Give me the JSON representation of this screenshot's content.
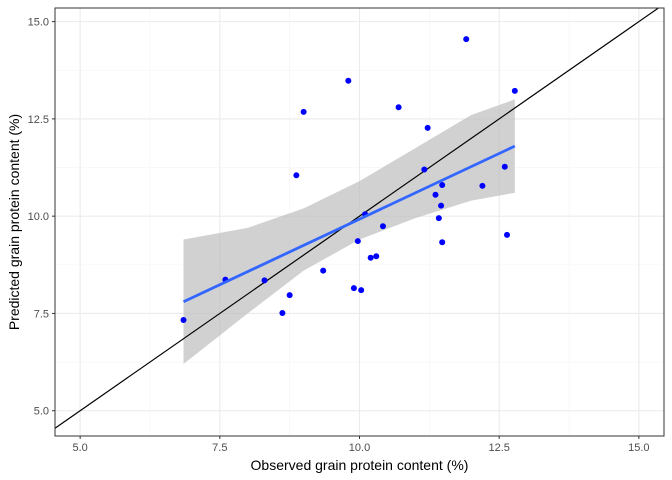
{
  "chart_data": {
    "type": "scatter",
    "xlabel": "Observed grain protein content (%)",
    "ylabel": "Predicted grain protein content (%)",
    "xlim": [
      4.55,
      15.45
    ],
    "ylim": [
      4.35,
      15.35
    ],
    "x_ticks": [
      5.0,
      7.5,
      10.0,
      12.5,
      15.0
    ],
    "x_tick_labels": [
      "5.0",
      "7.5",
      "10.0",
      "12.5",
      "15.0"
    ],
    "y_ticks": [
      5.0,
      7.5,
      10.0,
      12.5,
      15.0
    ],
    "y_tick_labels": [
      "5.0",
      "7.5",
      "10.0",
      "12.5",
      "15.0"
    ],
    "grid": true,
    "points": [
      {
        "x": 6.85,
        "y": 7.33
      },
      {
        "x": 7.6,
        "y": 8.37
      },
      {
        "x": 8.3,
        "y": 8.35
      },
      {
        "x": 8.62,
        "y": 7.51
      },
      {
        "x": 8.75,
        "y": 7.97
      },
      {
        "x": 8.87,
        "y": 11.05
      },
      {
        "x": 9.0,
        "y": 12.68
      },
      {
        "x": 9.35,
        "y": 8.6
      },
      {
        "x": 9.8,
        "y": 13.48
      },
      {
        "x": 9.9,
        "y": 8.15
      },
      {
        "x": 9.97,
        "y": 9.36
      },
      {
        "x": 10.03,
        "y": 8.1
      },
      {
        "x": 10.1,
        "y": 10.05
      },
      {
        "x": 10.2,
        "y": 8.93
      },
      {
        "x": 10.3,
        "y": 8.97
      },
      {
        "x": 10.42,
        "y": 9.74
      },
      {
        "x": 10.7,
        "y": 12.8
      },
      {
        "x": 11.16,
        "y": 11.2
      },
      {
        "x": 11.22,
        "y": 12.27
      },
      {
        "x": 11.36,
        "y": 10.55
      },
      {
        "x": 11.42,
        "y": 9.95
      },
      {
        "x": 11.46,
        "y": 10.27
      },
      {
        "x": 11.48,
        "y": 10.8
      },
      {
        "x": 11.48,
        "y": 9.33
      },
      {
        "x": 11.91,
        "y": 14.55
      },
      {
        "x": 12.2,
        "y": 10.78
      },
      {
        "x": 12.6,
        "y": 11.27
      },
      {
        "x": 12.64,
        "y": 9.52
      },
      {
        "x": 12.78,
        "y": 13.22
      }
    ],
    "regression": {
      "x": [
        6.85,
        12.78
      ],
      "y": [
        7.8,
        11.8
      ]
    },
    "confidence_band": {
      "x": [
        6.85,
        8.0,
        9.0,
        10.0,
        11.0,
        12.0,
        12.78
      ],
      "lower": [
        6.2,
        7.5,
        8.6,
        9.4,
        9.95,
        10.4,
        10.6
      ],
      "upper": [
        9.4,
        9.7,
        10.2,
        10.9,
        11.75,
        12.6,
        13.0
      ]
    },
    "reference_line": {
      "x": [
        4.55,
        15.45
      ],
      "y": [
        4.55,
        15.45
      ]
    },
    "colors": {
      "points": "#0000ff",
      "regression": "#3366ff",
      "band": "#bebebe",
      "reference": "#000000",
      "grid_major": "#ebebeb",
      "grid_minor": "#f5f5f5",
      "panel_border": "#333333"
    }
  }
}
